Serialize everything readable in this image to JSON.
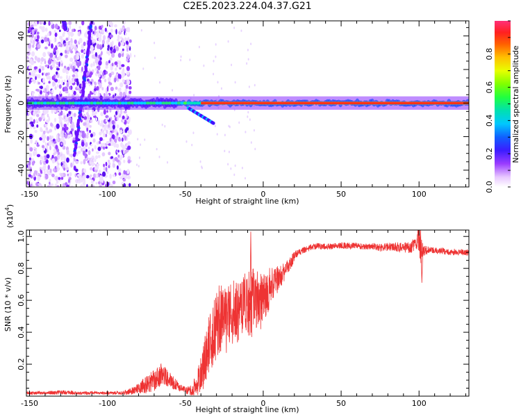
{
  "title": "C2E5.2023.224.04.37.G21",
  "chart_data": [
    {
      "type": "heatmap",
      "xlabel": "Height of straight line (km)",
      "ylabel": "Frequency (Hz)",
      "xlim": [
        -152,
        132
      ],
      "ylim": [
        -50,
        49
      ],
      "xticks": [
        -150,
        -100,
        -50,
        0,
        50,
        100
      ],
      "yticks": [
        -40,
        -20,
        0,
        20,
        40
      ],
      "colorbar": {
        "label": "Normalized spectral amplitude",
        "range": [
          0.0,
          1.0
        ],
        "ticks": [
          0.0,
          0.2,
          0.4,
          0.6,
          0.8
        ]
      },
      "features": {
        "carrier_line_frequency_hz": 0,
        "carrier_visible_from_km": -152,
        "noise_region_km": [
          -152,
          -85
        ],
        "drift_streaks": [
          {
            "from": [
              -128,
              49
            ],
            "to": [
              -127,
              44
            ]
          },
          {
            "from": [
              -110,
              49
            ],
            "to": [
              -121,
              -31
            ]
          }
        ],
        "tail_segment": [
          {
            "from": [
              -48,
              -3
            ],
            "to": [
              -32,
              -12
            ]
          }
        ]
      }
    },
    {
      "type": "line",
      "xlabel": "Height of straight line (km)",
      "ylabel": "SNR (10 * v/v)",
      "multiplier": "(x10^4)",
      "multiplier_base": "(x10",
      "multiplier_exp": "4",
      "multiplier_close": ")",
      "xlim": [
        -152,
        132
      ],
      "ylim": [
        0.0,
        1.04
      ],
      "xticks": [
        -150,
        -100,
        -50,
        0,
        50,
        100
      ],
      "yticks": [
        0.2,
        0.4,
        0.6,
        0.8,
        1.0
      ],
      "ytick_labels": [
        "0.2",
        "0.4",
        "0.6",
        "0.8",
        "1.0"
      ],
      "color": "#ee3333",
      "series": [
        {
          "x": [
            -152,
            -140,
            -130,
            -120,
            -110,
            -100,
            -90,
            -85,
            -80,
            -75,
            -70,
            -65,
            -62,
            -60,
            -57,
            -55,
            -52,
            -50,
            -47,
            -45,
            -42,
            -40,
            -38,
            -35,
            -32,
            -30,
            -27,
            -25,
            -22,
            -20,
            -17,
            -15,
            -12,
            -10,
            -8,
            -5,
            -2,
            0,
            3,
            5,
            8,
            10,
            13,
            15,
            18,
            20,
            23,
            25,
            28,
            30,
            35,
            40,
            45,
            50,
            55,
            60,
            65,
            70,
            75,
            80,
            85,
            90,
            95,
            98,
            100,
            101,
            102,
            104,
            107,
            110,
            115,
            120,
            125,
            130,
            132
          ],
          "y": [
            0.02,
            0.02,
            0.025,
            0.02,
            0.02,
            0.02,
            0.02,
            0.03,
            0.05,
            0.07,
            0.1,
            0.14,
            0.12,
            0.1,
            0.08,
            0.06,
            0.05,
            0.04,
            0.03,
            0.03,
            0.08,
            0.14,
            0.2,
            0.32,
            0.38,
            0.45,
            0.5,
            0.47,
            0.5,
            0.54,
            0.52,
            0.56,
            0.57,
            0.55,
            0.58,
            0.6,
            0.58,
            0.62,
            0.65,
            0.7,
            0.72,
            0.74,
            0.77,
            0.8,
            0.84,
            0.88,
            0.9,
            0.91,
            0.92,
            0.93,
            0.94,
            0.935,
            0.94,
            0.945,
            0.94,
            0.945,
            0.935,
            0.94,
            0.93,
            0.935,
            0.935,
            0.93,
            0.935,
            0.95,
            1.0,
            0.9,
            0.92,
            0.91,
            0.92,
            0.91,
            0.91,
            0.9,
            0.905,
            0.9,
            0.9
          ],
          "noise_amplitude": [
            0.01,
            0.01,
            0.015,
            0.01,
            0.01,
            0.01,
            0.012,
            0.02,
            0.03,
            0.06,
            0.07,
            0.07,
            0.06,
            0.05,
            0.04,
            0.03,
            0.02,
            0.02,
            0.03,
            0.06,
            0.09,
            0.12,
            0.15,
            0.18,
            0.2,
            0.22,
            0.22,
            0.22,
            0.22,
            0.22,
            0.2,
            0.2,
            0.2,
            0.22,
            0.22,
            0.2,
            0.18,
            0.16,
            0.14,
            0.12,
            0.1,
            0.08,
            0.06,
            0.05,
            0.04,
            0.03,
            0.02,
            0.02,
            0.02,
            0.02,
            0.02,
            0.02,
            0.02,
            0.02,
            0.02,
            0.02,
            0.02,
            0.02,
            0.025,
            0.025,
            0.03,
            0.03,
            0.04,
            0.05,
            0.09,
            0.08,
            0.06,
            0.03,
            0.02,
            0.02,
            0.02,
            0.02,
            0.02,
            0.02,
            0.02
          ]
        }
      ]
    }
  ]
}
